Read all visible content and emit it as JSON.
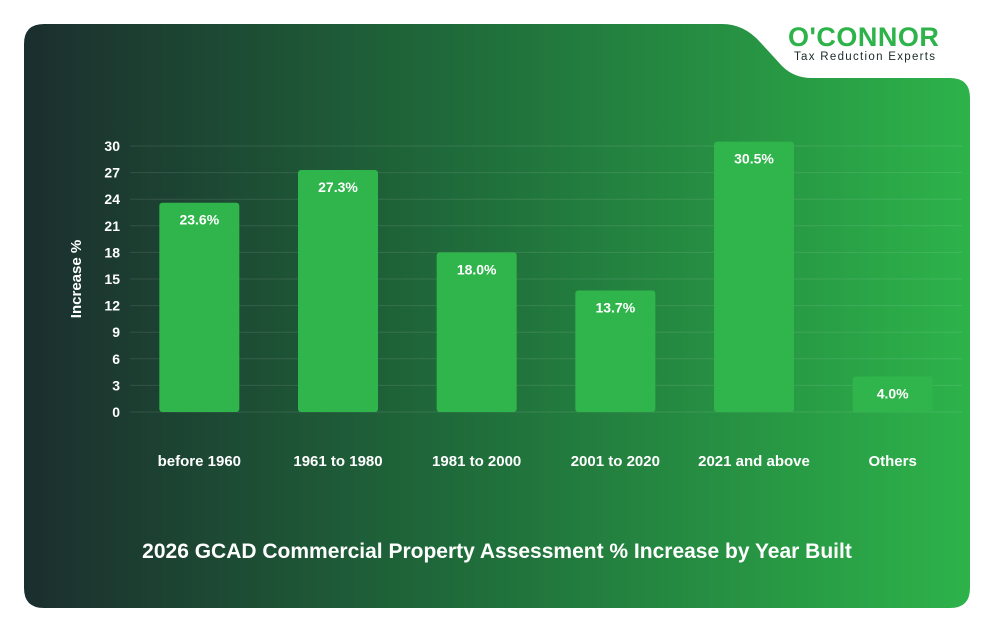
{
  "brand": {
    "name": "O'CONNOR",
    "tagline": "Tax Reduction Experts"
  },
  "colors": {
    "background_dark": "#1b2e2e",
    "background_light": "#2db34a",
    "bar": "#2fb54b",
    "text": "#ffffff"
  },
  "chart_data": {
    "type": "bar",
    "title": "2026 GCAD Commercial Property Assessment % Increase by Year Built",
    "xlabel": "",
    "ylabel": "Increase %",
    "categories": [
      "before 1960",
      "1961 to 1980",
      "1981 to 2000",
      "2001 to 2020",
      "2021 and above",
      "Others"
    ],
    "values": [
      23.6,
      27.3,
      18.0,
      13.7,
      30.5,
      4.0
    ],
    "data_labels": [
      "23.6%",
      "27.3%",
      "18.0%",
      "13.7%",
      "30.5%",
      "4.0%"
    ],
    "yticks": [
      0,
      3,
      6,
      9,
      12,
      15,
      18,
      21,
      24,
      27,
      30
    ],
    "ylim": [
      0,
      30
    ],
    "grid": true,
    "legend": "none"
  }
}
